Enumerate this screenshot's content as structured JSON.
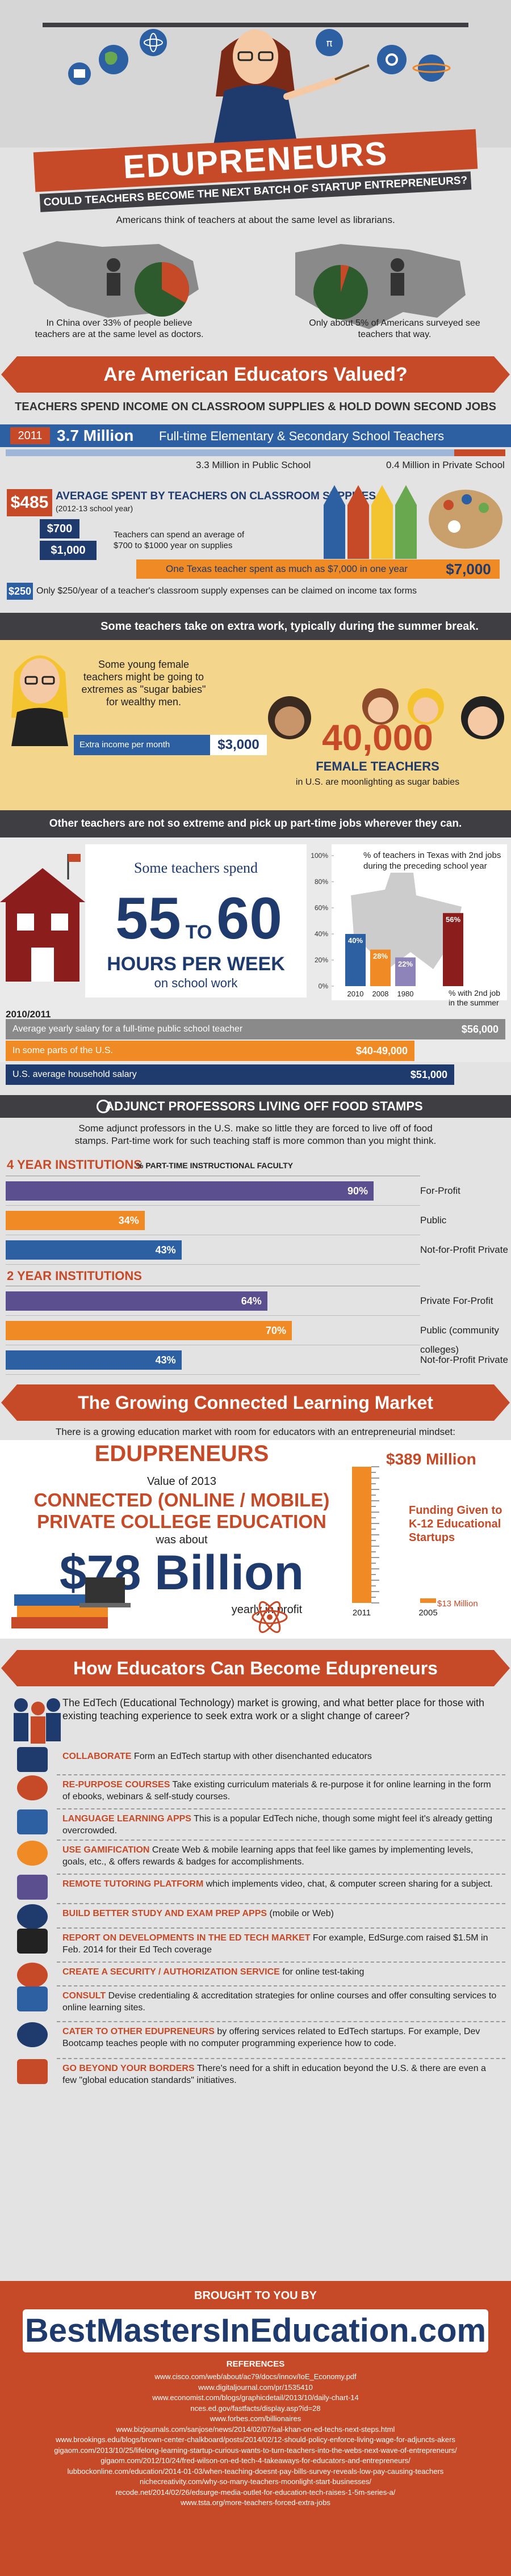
{
  "header": {
    "title": "EDUPRENEURS",
    "subtitle": "COULD TEACHERS BECOME THE NEXT BATCH OF STARTUP ENTREPRENEURS?",
    "intro": "Americans think of teachers at about the same level as librarians."
  },
  "china": {
    "text": "In China over 33% of people believe teachers are at the same level as doctors.",
    "value": 33
  },
  "usa": {
    "text": "Only about 5% of Americans surveyed see teachers that way.",
    "value": 5
  },
  "s1": {
    "title": "Are American Educators Valued?",
    "sub": "TEACHERS SPEND INCOME ON CLASSROOM SUPPLIES & HOLD DOWN SECOND JOBS",
    "year": "2011",
    "count": "3.7 Million",
    "count_label": "Full-time Elementary & Secondary School Teachers",
    "public": "3.3 Million in Public School",
    "private": "0.4 Million in Private School",
    "avg_amt": "$485",
    "avg_label": "AVERAGE SPENT BY TEACHERS ON CLASSROOM SUPPLIES",
    "avg_sub": "(2012-13 school year)",
    "lo": "$700",
    "hi": "$1,000",
    "range_text": "Teachers can spend an average of $700 to $1000 year on supplies",
    "texas_text": "One Texas teacher spent as much as $7,000 in one year",
    "texas_amt": "$7,000",
    "tax_amt": "$250",
    "tax_text": "Only $250/year of a teacher's classroom supply expenses can be claimed on income tax forms"
  },
  "s2": {
    "band": "Some teachers take on extra work, typically during the summer break.",
    "young": "Some young female teachers might be going to extremes as \"sugar babies\" for wealthy men.",
    "extra_label": "Extra income per month",
    "extra_amt": "$3,000",
    "big": "40,000",
    "big_label": "FEMALE TEACHERS",
    "big_sub": "in U.S. are moonlighting as sugar babies"
  },
  "s3": {
    "band": "Other teachers are not so extreme and pick up part-time jobs wherever they can.",
    "hours_pre": "Some teachers spend",
    "h1": "55",
    "to": "TO",
    "h2": "60",
    "hours_label": "HOURS PER WEEK",
    "hours_sub": "on school work",
    "chart_title": "% of teachers in Texas with 2nd jobs during the preceding school year",
    "summer": "% with 2nd job in the summer",
    "salary_year": "2010/2011",
    "salary_rows": [
      {
        "label": "Average yearly salary for a full-time public school teacher",
        "value": "$56,000"
      },
      {
        "label": "In some parts of the U.S.",
        "value": "$40-49,000"
      },
      {
        "label": "U.S. average household salary",
        "value": "$51,000"
      }
    ]
  },
  "s4": {
    "band": "ADJUNCT PROFESSORS LIVING OFF FOOD STAMPS",
    "intro": "Some adjunct professors in the U.S. make so little they are forced to live off of food stamps. Part-time work for such teaching staff is more common than you might think.",
    "four_title": "4 YEAR INSTITUTIONS",
    "four_sub": "% PART-TIME INSTRUCTIONAL FACULTY",
    "two_title": "2 YEAR INSTITUTIONS",
    "four": [
      {
        "label": "For-Profit",
        "value": "90%"
      },
      {
        "label": "Public",
        "value": "34%"
      },
      {
        "label": "Not-for-Profit Private",
        "value": "43%"
      }
    ],
    "two": [
      {
        "label": "Private For-Profit",
        "value": "64%"
      },
      {
        "label": "Public (community colleges)",
        "value": "70%"
      },
      {
        "label": "Not-for-Profit Private",
        "value": "43%"
      }
    ]
  },
  "s5": {
    "title": "The Growing Connected Learning Market",
    "intro": "There is a growing education market with room for educators with an entrepreneurial mindset:",
    "edu": "EDUPRENEURS",
    "value_of": "Value of 2013",
    "c1": "CONNECTED (ONLINE / MOBILE)",
    "c2": "PRIVATE COLLEGE EDUCATION",
    "was_about": "was about",
    "billion": "$78 Billion",
    "yearly": "yearly in profit",
    "top": "$389 Million",
    "funding": "Funding Given to K-12 Educational Startups",
    "bottom": "$13 Million",
    "y1": "2011",
    "y2": "2005"
  },
  "s6": {
    "title": "How Educators Can Become Edupreneurs",
    "intro": "The EdTech (Educational Technology) market is growing, and what better place for those with existing teaching experience to seek extra work or a slight change of career?",
    "steps": [
      {
        "h": "COLLABORATE",
        "t": " Form an EdTech startup with other disenchanted educators"
      },
      {
        "h": "RE-PURPOSE COURSES",
        "t": " Take existing curriculum materials & re-purpose it for online learning in the form of ebooks, webinars & self-study courses."
      },
      {
        "h": "LANGUAGE LEARNING APPS",
        "t": " This is a popular EdTech niche, though some might feel it's already getting overcrowded."
      },
      {
        "h": "USE GAMIFICATION",
        "t": " Create Web & mobile learning apps that feel like games by implementing levels, goals, etc., & offers rewards & badges for accomplishments."
      },
      {
        "h": "REMOTE TUTORING PLATFORM",
        "t": " which implements video, chat, & computer screen sharing for a subject."
      },
      {
        "h": "BUILD BETTER STUDY AND EXAM PREP APPS",
        "t": " (mobile or Web)"
      },
      {
        "h": "REPORT ON DEVELOPMENTS IN THE ED TECH MARKET",
        "t": " For example, EdSurge.com raised $1.5M in Feb. 2014 for their Ed Tech coverage"
      },
      {
        "h": "CREATE A SECURITY / AUTHORIZATION SERVICE",
        "t": " for online test-taking"
      },
      {
        "h": "CONSULT",
        "t": " Devise credentialing & accreditation strategies for online courses and offer consulting services to online learning sites."
      },
      {
        "h": "CATER TO OTHER EDUPRENEURS",
        "t": " by offering services related to EdTech startups. For example, Dev Bootcamp teaches people with no computer programming experience how to code."
      },
      {
        "h": "GO BEYOND YOUR BORDERS",
        "t": " There's need for a shift in education beyond the U.S. & there are even a few \"global education standards\" initiatives."
      }
    ]
  },
  "footer": {
    "brought": "BROUGHT TO YOU BY",
    "brand": "BestMastersInEducation.com",
    "refs_title": "REFERENCES",
    "refs": [
      "www.cisco.com/web/about/ac79/docs/innov/IoE_Economy.pdf",
      "www.digitaljournal.com/pr/1535410",
      "www.economist.com/blogs/graphicdetail/2013/10/daily-chart-14",
      "nces.ed.gov/fastfacts/display.asp?id=28",
      "www.forbes.com/billionaires",
      "www.bizjournals.com/sanjose/news/2014/02/07/sal-khan-on-ed-techs-next-steps.html",
      "www.brookings.edu/blogs/brown-center-chalkboard/posts/2014/02/12-should-policy-enforce-living-wage-for-adjuncts-akers",
      "gigaom.com/2013/10/25/lifelong-learning-startup-curious-wants-to-turn-teachers-into-the-webs-next-wave-of-entrepreneurs/",
      "gigaom.com/2012/10/24/fred-wilson-on-ed-tech-4-takeaways-for-educators-and-entrepreneurs/",
      "lubbockonline.com/education/2014-01-03/when-teaching-doesnt-pay-bills-survey-reveals-low-pay-causing-teachers",
      "nichecreativity.com/why-so-many-teachers-moonlight-start-businesses/",
      "recode.net/2014/02/26/edsurge-media-outlet-for-education-tech-raises-1-5m-series-a/",
      "www.tsta.org/more-teachers-forced-extra-jobs"
    ]
  },
  "chart_data": [
    {
      "type": "bar",
      "title": "% of teachers in Texas with 2nd jobs during the preceding school year",
      "categories": [
        "2010",
        "2008",
        "1980",
        "% with 2nd job in the summer"
      ],
      "values": [
        40,
        28,
        22,
        56
      ],
      "ylim": [
        0,
        100
      ],
      "ylabel": "",
      "xlabel": "",
      "colors": [
        "#2d5fa3",
        "#f08a24",
        "#8e84b9",
        "#8c1d1d"
      ]
    },
    {
      "type": "bar",
      "title": "4 YEAR INSTITUTIONS % PART-TIME INSTRUCTIONAL FACULTY",
      "categories": [
        "For-Profit",
        "Public",
        "Not-for-Profit Private"
      ],
      "values": [
        90,
        34,
        43
      ],
      "xlim": [
        0,
        100
      ]
    },
    {
      "type": "bar",
      "title": "2 YEAR INSTITUTIONS",
      "categories": [
        "Private For-Profit",
        "Public (community colleges)",
        "Not-for-Profit Private"
      ],
      "values": [
        64,
        70,
        43
      ],
      "xlim": [
        0,
        100
      ]
    },
    {
      "type": "bar",
      "title": "Funding Given to K-12 Educational Startups",
      "categories": [
        "2005",
        "2011"
      ],
      "values": [
        13,
        389
      ],
      "ylabel": "$ Million"
    }
  ],
  "colors": {
    "accent": "#c64a27",
    "navy": "#1f3a6d",
    "blue": "#2d5fa3",
    "orange": "#f08a24",
    "purple": "#5b4f8f",
    "dark": "#3f3f43"
  }
}
